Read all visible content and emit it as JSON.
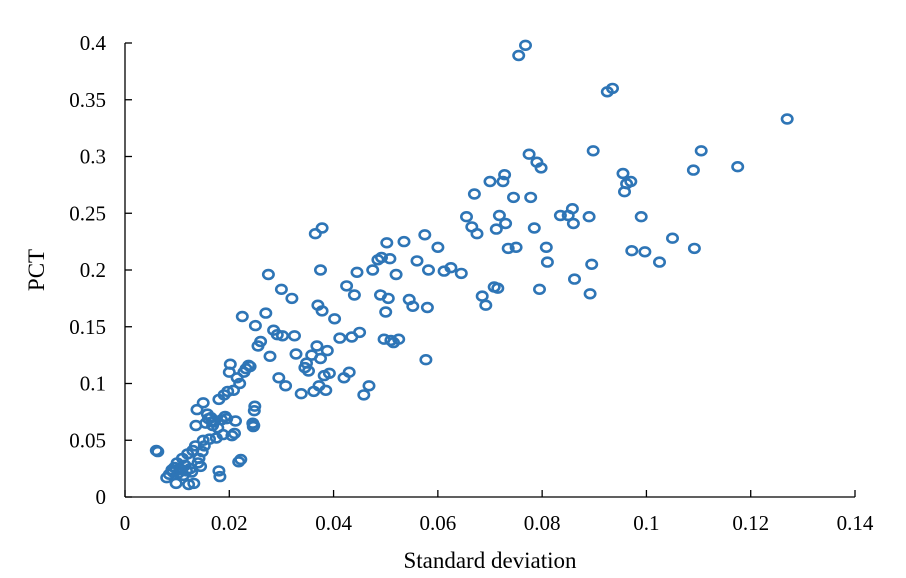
{
  "chart_data": {
    "type": "scatter",
    "title": "",
    "xlabel": "Standard deviation",
    "ylabel": "PCT",
    "xlim": [
      0,
      0.14
    ],
    "ylim": [
      0,
      0.4
    ],
    "xticks": [
      0,
      0.02,
      0.04,
      0.06,
      0.08,
      0.1,
      0.12,
      0.14
    ],
    "xtick_labels": [
      "0",
      "0.02",
      "0.04",
      "0.06",
      "0.08",
      "0.1",
      "0.12",
      "0.14"
    ],
    "yticks": [
      0,
      0.05,
      0.1,
      0.15,
      0.2,
      0.25,
      0.3,
      0.35,
      0.4
    ],
    "ytick_labels": [
      "0",
      "0.05",
      "0.1",
      "0.15",
      "0.2",
      "0.25",
      "0.3",
      "0.35",
      "0.4"
    ],
    "grid": false,
    "legend": "none",
    "marker": "open-circle",
    "color": "#2E75B6",
    "series": [
      {
        "points": [
          [
            0.006,
            0.041
          ],
          [
            0.0063,
            0.04
          ],
          [
            0.008,
            0.017
          ],
          [
            0.0085,
            0.02
          ],
          [
            0.009,
            0.024
          ],
          [
            0.0092,
            0.022
          ],
          [
            0.0095,
            0.026
          ],
          [
            0.0098,
            0.012
          ],
          [
            0.01,
            0.03
          ],
          [
            0.0102,
            0.021
          ],
          [
            0.0105,
            0.025
          ],
          [
            0.0108,
            0.024
          ],
          [
            0.011,
            0.034
          ],
          [
            0.0112,
            0.019
          ],
          [
            0.0115,
            0.028
          ],
          [
            0.0118,
            0.023
          ],
          [
            0.012,
            0.038
          ],
          [
            0.0122,
            0.011
          ],
          [
            0.0125,
            0.025
          ],
          [
            0.0128,
            0.022
          ],
          [
            0.013,
            0.041
          ],
          [
            0.0132,
            0.012
          ],
          [
            0.0135,
            0.045
          ],
          [
            0.0136,
            0.063
          ],
          [
            0.0138,
            0.077
          ],
          [
            0.014,
            0.03
          ],
          [
            0.0142,
            0.034
          ],
          [
            0.0145,
            0.027
          ],
          [
            0.0148,
            0.04
          ],
          [
            0.015,
            0.05
          ],
          [
            0.015,
            0.083
          ],
          [
            0.0152,
            0.045
          ],
          [
            0.0155,
            0.065
          ],
          [
            0.0158,
            0.073
          ],
          [
            0.016,
            0.069
          ],
          [
            0.0162,
            0.051
          ],
          [
            0.0165,
            0.07
          ],
          [
            0.0168,
            0.063
          ],
          [
            0.017,
            0.066
          ],
          [
            0.0172,
            0.067
          ],
          [
            0.0175,
            0.052
          ],
          [
            0.0178,
            0.061
          ],
          [
            0.018,
            0.086
          ],
          [
            0.018,
            0.023
          ],
          [
            0.0182,
            0.018
          ],
          [
            0.0185,
            0.068
          ],
          [
            0.0188,
            0.055
          ],
          [
            0.019,
            0.09
          ],
          [
            0.0192,
            0.071
          ],
          [
            0.0195,
            0.069
          ],
          [
            0.0197,
            0.093
          ],
          [
            0.02,
            0.11
          ],
          [
            0.0202,
            0.117
          ],
          [
            0.0205,
            0.054
          ],
          [
            0.0208,
            0.094
          ],
          [
            0.021,
            0.056
          ],
          [
            0.0212,
            0.067
          ],
          [
            0.0215,
            0.105
          ],
          [
            0.0218,
            0.031
          ],
          [
            0.022,
            0.1
          ],
          [
            0.0222,
            0.033
          ],
          [
            0.0225,
            0.159
          ],
          [
            0.0228,
            0.11
          ],
          [
            0.0232,
            0.113
          ],
          [
            0.0237,
            0.116
          ],
          [
            0.024,
            0.115
          ],
          [
            0.0245,
            0.065
          ],
          [
            0.0246,
            0.062
          ],
          [
            0.0247,
            0.063
          ],
          [
            0.0248,
            0.076
          ],
          [
            0.0249,
            0.08
          ],
          [
            0.025,
            0.151
          ],
          [
            0.0255,
            0.133
          ],
          [
            0.026,
            0.137
          ],
          [
            0.027,
            0.162
          ],
          [
            0.0275,
            0.196
          ],
          [
            0.0278,
            0.124
          ],
          [
            0.0285,
            0.147
          ],
          [
            0.0292,
            0.143
          ],
          [
            0.0295,
            0.105
          ],
          [
            0.03,
            0.183
          ],
          [
            0.0302,
            0.142
          ],
          [
            0.0308,
            0.098
          ],
          [
            0.032,
            0.175
          ],
          [
            0.0325,
            0.142
          ],
          [
            0.0328,
            0.126
          ],
          [
            0.0338,
            0.091
          ],
          [
            0.0345,
            0.114
          ],
          [
            0.0348,
            0.118
          ],
          [
            0.0352,
            0.111
          ],
          [
            0.0358,
            0.125
          ],
          [
            0.0362,
            0.093
          ],
          [
            0.0365,
            0.232
          ],
          [
            0.0368,
            0.133
          ],
          [
            0.037,
            0.169
          ],
          [
            0.0372,
            0.098
          ],
          [
            0.0375,
            0.2
          ],
          [
            0.0375,
            0.122
          ],
          [
            0.0378,
            0.237
          ],
          [
            0.0378,
            0.164
          ],
          [
            0.0382,
            0.107
          ],
          [
            0.0385,
            0.094
          ],
          [
            0.0388,
            0.129
          ],
          [
            0.0392,
            0.109
          ],
          [
            0.0402,
            0.157
          ],
          [
            0.0412,
            0.14
          ],
          [
            0.042,
            0.105
          ],
          [
            0.0425,
            0.186
          ],
          [
            0.043,
            0.11
          ],
          [
            0.0435,
            0.141
          ],
          [
            0.044,
            0.178
          ],
          [
            0.0445,
            0.198
          ],
          [
            0.045,
            0.145
          ],
          [
            0.0458,
            0.09
          ],
          [
            0.0468,
            0.098
          ],
          [
            0.0475,
            0.2
          ],
          [
            0.0485,
            0.209
          ],
          [
            0.049,
            0.178
          ],
          [
            0.0492,
            0.211
          ],
          [
            0.0497,
            0.139
          ],
          [
            0.05,
            0.163
          ],
          [
            0.0502,
            0.224
          ],
          [
            0.0505,
            0.175
          ],
          [
            0.0508,
            0.21
          ],
          [
            0.051,
            0.138
          ],
          [
            0.0515,
            0.136
          ],
          [
            0.052,
            0.196
          ],
          [
            0.0525,
            0.139
          ],
          [
            0.0535,
            0.225
          ],
          [
            0.0545,
            0.174
          ],
          [
            0.0552,
            0.168
          ],
          [
            0.056,
            0.208
          ],
          [
            0.0575,
            0.231
          ],
          [
            0.0577,
            0.121
          ],
          [
            0.058,
            0.167
          ],
          [
            0.0582,
            0.2
          ],
          [
            0.06,
            0.22
          ],
          [
            0.0612,
            0.199
          ],
          [
            0.0625,
            0.202
          ],
          [
            0.0645,
            0.197
          ],
          [
            0.0655,
            0.247
          ],
          [
            0.0665,
            0.238
          ],
          [
            0.067,
            0.267
          ],
          [
            0.0675,
            0.232
          ],
          [
            0.0685,
            0.177
          ],
          [
            0.0692,
            0.169
          ],
          [
            0.07,
            0.278
          ],
          [
            0.0708,
            0.185
          ],
          [
            0.0712,
            0.236
          ],
          [
            0.0715,
            0.184
          ],
          [
            0.0718,
            0.248
          ],
          [
            0.0725,
            0.278
          ],
          [
            0.0728,
            0.284
          ],
          [
            0.073,
            0.241
          ],
          [
            0.0735,
            0.219
          ],
          [
            0.0745,
            0.264
          ],
          [
            0.075,
            0.22
          ],
          [
            0.0755,
            0.389
          ],
          [
            0.0768,
            0.398
          ],
          [
            0.0775,
            0.302
          ],
          [
            0.0778,
            0.264
          ],
          [
            0.0785,
            0.237
          ],
          [
            0.079,
            0.295
          ],
          [
            0.0795,
            0.183
          ],
          [
            0.0798,
            0.29
          ],
          [
            0.0808,
            0.22
          ],
          [
            0.081,
            0.207
          ],
          [
            0.0835,
            0.248
          ],
          [
            0.085,
            0.248
          ],
          [
            0.0858,
            0.254
          ],
          [
            0.086,
            0.241
          ],
          [
            0.0862,
            0.192
          ],
          [
            0.089,
            0.247
          ],
          [
            0.0892,
            0.179
          ],
          [
            0.0895,
            0.205
          ],
          [
            0.0898,
            0.305
          ],
          [
            0.0925,
            0.357
          ],
          [
            0.0935,
            0.36
          ],
          [
            0.0955,
            0.285
          ],
          [
            0.0958,
            0.269
          ],
          [
            0.0962,
            0.276
          ],
          [
            0.097,
            0.278
          ],
          [
            0.0972,
            0.217
          ],
          [
            0.099,
            0.247
          ],
          [
            0.0997,
            0.216
          ],
          [
            0.1025,
            0.207
          ],
          [
            0.105,
            0.228
          ],
          [
            0.109,
            0.288
          ],
          [
            0.1092,
            0.219
          ],
          [
            0.1105,
            0.305
          ],
          [
            0.1175,
            0.291
          ],
          [
            0.127,
            0.333
          ]
        ]
      }
    ]
  }
}
